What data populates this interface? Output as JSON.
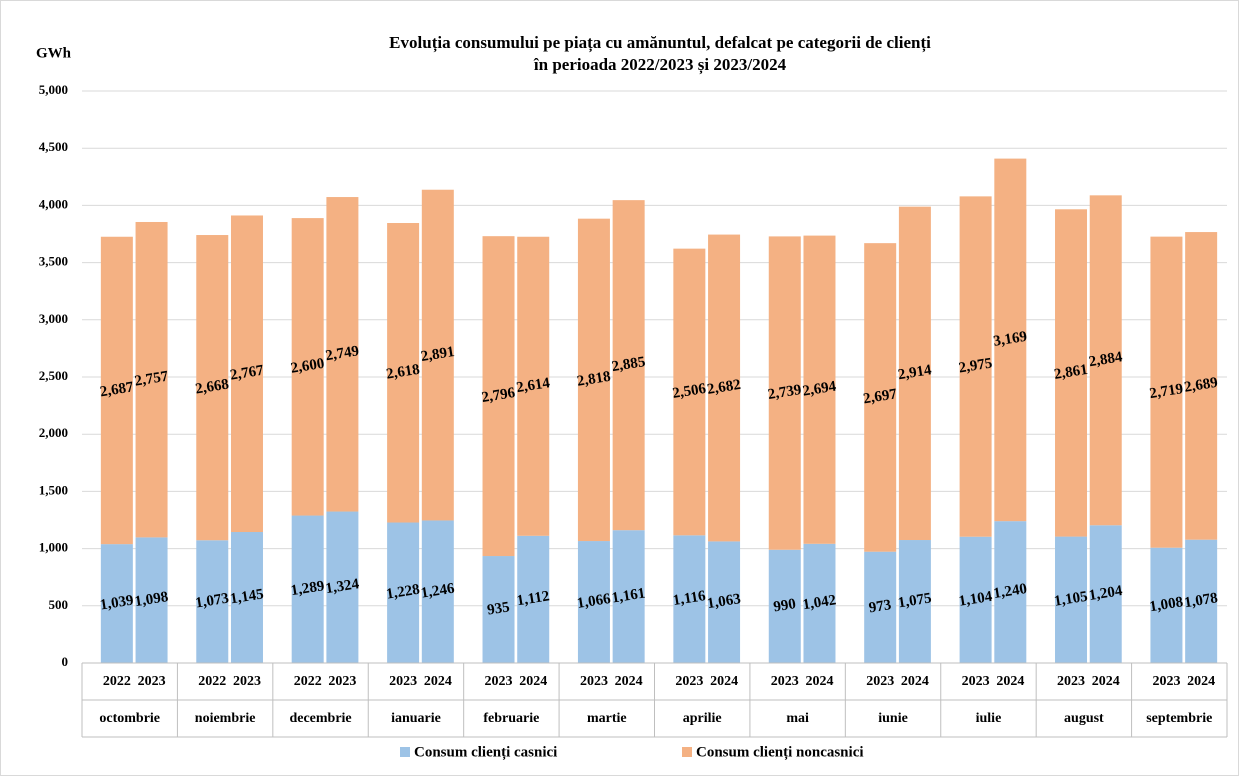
{
  "chart_data": {
    "type": "stacked-bar",
    "title": [
      "Evoluția consumului pe piața cu amănuntul, defalcat pe categorii de clienți",
      "în perioada 2022/2023 și 2023/2024"
    ],
    "y_label": "GWh",
    "categories": [
      "2022",
      "2023",
      "2022",
      "2023",
      "2022",
      "2023",
      "2023",
      "2024",
      "2023",
      "2024",
      "2023",
      "2024",
      "2023",
      "2024",
      "2023",
      "2024",
      "2023",
      "2024",
      "2023",
      "2024",
      "2023",
      "2024",
      "2023",
      "2024"
    ],
    "groups": [
      "octombrie",
      "noiembrie",
      "decembrie",
      "ianuarie",
      "februarie",
      "martie",
      "aprilie",
      "mai",
      "iunie",
      "iulie",
      "august",
      "septembrie"
    ],
    "series": [
      {
        "name": "Consum clienți casnici",
        "color": "#9dc3e6",
        "values": [
          1039,
          1098,
          1073,
          1145,
          1289,
          1324,
          1228,
          1246,
          935,
          1112,
          1066,
          1161,
          1116,
          1063,
          990,
          1042,
          973,
          1075,
          1104,
          1240,
          1105,
          1204,
          1008,
          1078
        ],
        "value_labels": [
          "1,039",
          "1,098",
          "1,073",
          "1,145",
          "1,289",
          "1,324",
          "1,228",
          "1,246",
          "935",
          "1,112",
          "1,066",
          "1,161",
          "1,116",
          "1,063",
          "990",
          "1,042",
          "973",
          "1,075",
          "1,104",
          "1,240",
          "1,105",
          "1,204",
          "1,008",
          "1,078"
        ]
      },
      {
        "name": "Consum clienți noncasnici",
        "color": "#f4b183",
        "values": [
          2687,
          2757,
          2668,
          2767,
          2600,
          2749,
          2618,
          2891,
          2796,
          2614,
          2818,
          2885,
          2506,
          2682,
          2739,
          2694,
          2697,
          2914,
          2975,
          3169,
          2861,
          2884,
          2719,
          2689
        ],
        "value_labels": [
          "2,687",
          "2,757",
          "2,668",
          "2,767",
          "2,600",
          "2,749",
          "2,618",
          "2,891",
          "2,796",
          "2,614",
          "2,818",
          "2,885",
          "2,506",
          "2,682",
          "2,739",
          "2,694",
          "2,697",
          "2,914",
          "2,975",
          "3,169",
          "2,861",
          "2,884",
          "2,719",
          "2,689"
        ]
      }
    ],
    "ylim": [
      0,
      5000
    ],
    "yticks": [
      0,
      500,
      {
        "value": 1000,
        "label": "1,000"
      },
      {
        "value": 1500,
        "label": "1,500"
      },
      {
        "value": 2000,
        "label": "2,000"
      },
      {
        "value": 2500,
        "label": "2,500"
      },
      {
        "value": 3000,
        "label": "3,000"
      },
      {
        "value": 3500,
        "label": "3,500"
      },
      {
        "value": 4000,
        "label": "4,000"
      },
      {
        "value": 4500,
        "label": "4,500"
      },
      {
        "value": 5000,
        "label": "5,000"
      }
    ],
    "grid": true,
    "legend": "bottom"
  }
}
